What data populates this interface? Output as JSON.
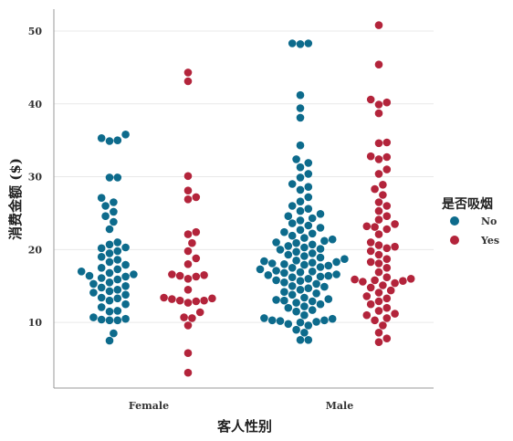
{
  "chart_data": {
    "type": "scatter",
    "subtype": "swarm",
    "title": "",
    "xlabel": "客人性别",
    "ylabel": "消费金额 ($)",
    "categories": [
      "Female",
      "Male"
    ],
    "ylim": [
      1,
      53
    ],
    "yticks": [
      10,
      20,
      30,
      40,
      50
    ],
    "grid": "horizontal",
    "legend": {
      "title": "是否吸烟",
      "placement": "right",
      "entries": [
        "No",
        "Yes"
      ]
    },
    "colors": {
      "No": "#0d6b8c",
      "Yes": "#b3243b"
    },
    "series": [
      {
        "name": "No",
        "category": "Female",
        "values": [
          7.5,
          8.5,
          10.3,
          10.3,
          10.4,
          10.5,
          10.7,
          11.5,
          11.6,
          12.1,
          12.5,
          13.0,
          13.3,
          13.4,
          13.8,
          14.1,
          14.3,
          14.5,
          14.8,
          15.0,
          15.3,
          15.5,
          15.9,
          16.1,
          16.3,
          16.4,
          16.6,
          16.8,
          17.0,
          17.3,
          17.5,
          17.9,
          18.3,
          18.6,
          19.0,
          19.5,
          19.8,
          20.2,
          20.3,
          20.7,
          21.0,
          22.8,
          23.8,
          24.6,
          25.2,
          26.0,
          26.5,
          27.1,
          29.9,
          29.9,
          34.9,
          35.0,
          35.3,
          35.8
        ]
      },
      {
        "name": "Yes",
        "category": "Female",
        "values": [
          3.1,
          5.8,
          9.6,
          10.6,
          10.7,
          11.4,
          12.7,
          12.9,
          13.0,
          13.0,
          13.2,
          13.3,
          13.4,
          14.5,
          16.0,
          16.3,
          16.4,
          16.5,
          16.6,
          18.0,
          18.8,
          19.8,
          20.9,
          22.1,
          22.4,
          26.9,
          27.2,
          28.1,
          30.1,
          43.1,
          44.3
        ]
      },
      {
        "name": "No",
        "category": "Male",
        "values": [
          7.6,
          7.6,
          8.6,
          9.0,
          9.6,
          9.8,
          10.0,
          10.1,
          10.2,
          10.3,
          10.3,
          10.5,
          10.6,
          11.0,
          11.5,
          11.7,
          12.0,
          12.2,
          12.5,
          12.7,
          12.9,
          13.0,
          13.1,
          13.2,
          13.4,
          13.8,
          14.0,
          14.2,
          14.5,
          14.7,
          14.9,
          15.0,
          15.3,
          15.5,
          15.7,
          15.8,
          16.0,
          16.2,
          16.3,
          16.4,
          16.5,
          16.6,
          16.8,
          16.9,
          17.0,
          17.1,
          17.3,
          17.5,
          17.6,
          17.8,
          17.9,
          18.0,
          18.1,
          18.2,
          18.3,
          18.4,
          18.5,
          18.7,
          18.9,
          19.1,
          19.3,
          19.5,
          19.7,
          20.0,
          20.1,
          20.3,
          20.5,
          20.7,
          20.9,
          21.0,
          21.2,
          21.4,
          21.6,
          21.9,
          22.2,
          22.4,
          22.7,
          23.0,
          23.3,
          23.6,
          24.0,
          24.3,
          24.6,
          24.9,
          25.3,
          25.6,
          26.0,
          26.6,
          27.2,
          28.2,
          28.6,
          29.0,
          29.9,
          30.4,
          31.3,
          31.9,
          32.4,
          34.3,
          38.1,
          39.4,
          41.2,
          48.2,
          48.3,
          48.3
        ]
      },
      {
        "name": "Yes",
        "category": "Male",
        "values": [
          7.3,
          7.8,
          8.6,
          9.6,
          10.3,
          10.6,
          11.0,
          11.2,
          11.6,
          12.0,
          12.5,
          12.9,
          13.3,
          13.6,
          14.1,
          14.4,
          14.8,
          15.1,
          15.4,
          15.6,
          15.7,
          15.8,
          15.9,
          16.0,
          16.2,
          16.9,
          17.5,
          18.1,
          18.3,
          18.7,
          19.3,
          19.8,
          20.2,
          20.4,
          20.6,
          21.0,
          22.1,
          22.8,
          23.1,
          23.2,
          23.5,
          24.1,
          24.6,
          25.3,
          26.0,
          26.5,
          27.5,
          28.3,
          28.9,
          30.4,
          31.0,
          32.4,
          32.7,
          32.8,
          34.6,
          34.7,
          38.7,
          39.9,
          40.2,
          40.6,
          45.4,
          50.8
        ]
      }
    ]
  }
}
